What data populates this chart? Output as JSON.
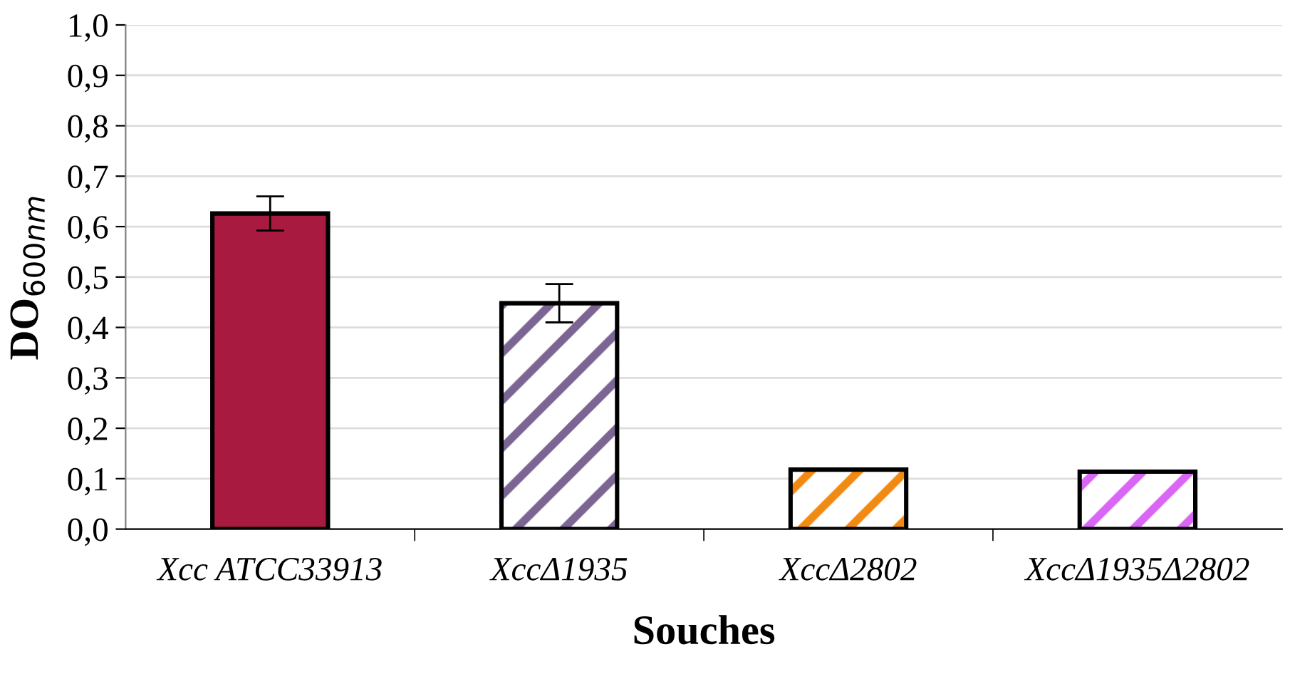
{
  "chart_data": {
    "type": "bar",
    "xlabel": "Souches",
    "ylabel": "DO$_{600nm}$",
    "categories": [
      "Xcc ATCC33913",
      "XccΔ1935",
      "XccΔ2802",
      "XccΔ1935Δ2802"
    ],
    "values": [
      0.626,
      0.448,
      0.118,
      0.114
    ],
    "errors": [
      0.034,
      0.038,
      null,
      null
    ],
    "colors": [
      "#a81a40",
      "#7a6593",
      "#f28a12",
      "#d966f5"
    ],
    "ylim": [
      0,
      1.0
    ],
    "yticks": [
      {
        "value": 0,
        "label": "0,0"
      },
      {
        "value": 0.1,
        "label": "0,1"
      },
      {
        "value": 0.2,
        "label": "0,2"
      },
      {
        "value": 0.3,
        "label": "0,3"
      },
      {
        "value": 0.4,
        "label": "0,4"
      },
      {
        "value": 0.5,
        "label": "0,5"
      },
      {
        "value": 0.6,
        "label": "0,6"
      },
      {
        "value": 0.7,
        "label": "0,7"
      },
      {
        "value": 0.8,
        "label": "0,8"
      },
      {
        "value": 0.9,
        "label": "0,9"
      },
      {
        "value": 1.0,
        "label": "1,0"
      }
    ],
    "grid": "y"
  }
}
